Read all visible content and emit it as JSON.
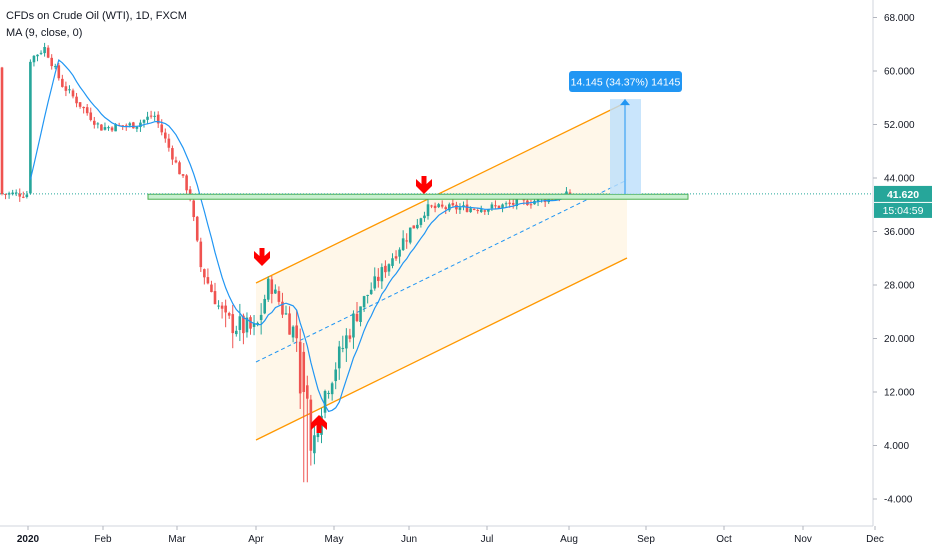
{
  "legend": {
    "title": "CFDs on Crude Oil (WTI), 1D, FXCM",
    "indicator": "MA (9, close, 0)"
  },
  "price_tag": {
    "value": "41.620",
    "countdown": "15:04:59"
  },
  "measure_label": "14.145 (34.37%) 14145",
  "colors": {
    "up": "#26a69a",
    "down": "#ef5350",
    "ma": "#2196f3",
    "channel": "#ff9800",
    "channel_fill": "#fff3e0",
    "resistance": "#4caf50",
    "price_line": "#26a69a",
    "measure": "#2196f3",
    "arrow": "#ff0000"
  },
  "chart_data": {
    "type": "candlestick",
    "title": "CFDs on Crude Oil (WTI), 1D, FXCM",
    "x_tick_labels": [
      "2020",
      "Feb",
      "Mar",
      "Apr",
      "May",
      "Jun",
      "Jul",
      "Aug",
      "Sep",
      "Oct",
      "Nov",
      "Dec"
    ],
    "y_tick_labels": [
      "68.000",
      "60.000",
      "52.000",
      "44.000",
      "36.000",
      "28.000",
      "20.000",
      "12.000",
      "4.000",
      "-4.000"
    ],
    "ylim": [
      -6,
      73
    ],
    "last_price": 41.62,
    "resistance_level": 41.2,
    "series": [
      {
        "name": "CFDs on Crude Oil (WTI)",
        "approx_close_by_month": [
          {
            "date": "2020-01-01",
            "value": 61.5
          },
          {
            "date": "2020-01-08",
            "value": 63.5
          },
          {
            "date": "2020-01-15",
            "value": 58.0
          },
          {
            "date": "2020-01-31",
            "value": 51.5
          },
          {
            "date": "2020-02-14",
            "value": 52.0
          },
          {
            "date": "2020-02-21",
            "value": 53.5
          },
          {
            "date": "2020-03-06",
            "value": 41.5
          },
          {
            "date": "2020-03-10",
            "value": 31.0
          },
          {
            "date": "2020-03-20",
            "value": 22.5
          },
          {
            "date": "2020-04-01",
            "value": 21.0
          },
          {
            "date": "2020-04-06",
            "value": 28.5
          },
          {
            "date": "2020-04-17",
            "value": 20.0
          },
          {
            "date": "2020-04-20",
            "value": -1.0
          },
          {
            "date": "2020-04-27",
            "value": 11.5
          },
          {
            "date": "2020-05-11",
            "value": 24.5
          },
          {
            "date": "2020-06-01",
            "value": 36.0
          },
          {
            "date": "2020-06-08",
            "value": 39.5
          },
          {
            "date": "2020-07-01",
            "value": 39.5
          },
          {
            "date": "2020-08-04",
            "value": 41.62
          }
        ]
      }
    ],
    "indicator": "MA (9, close, 0)",
    "annotations": {
      "measure": "14.145 (34.37%) 14145"
    }
  }
}
